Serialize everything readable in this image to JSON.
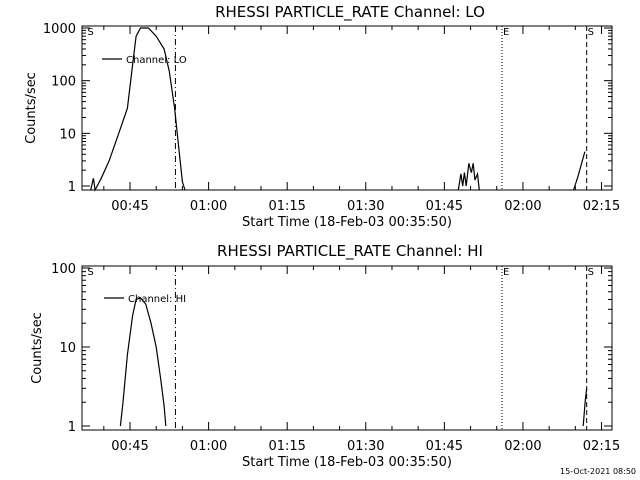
{
  "chart_data": [
    {
      "type": "line",
      "title": "RHESSI PARTICLE_RATE Channel: LO",
      "xlabel": "Start Time (18-Feb-03 00:35:50)",
      "ylabel": "Counts/sec",
      "x_ticks": [
        "00:45",
        "01:00",
        "01:15",
        "01:30",
        "01:45",
        "02:00",
        "02:15"
      ],
      "y_ticks": [
        "1",
        "10",
        "100",
        "1000"
      ],
      "y_scale": "log",
      "xlim": [
        "00:35:50",
        "02:17:00"
      ],
      "ylim": [
        0.8,
        1000
      ],
      "legend": {
        "label": "Channel: LO",
        "placement": "top-left"
      },
      "series": [
        {
          "name": "Channel: LO",
          "points": [
            [
              "00:37:30",
              0.8
            ],
            [
              "00:38:00",
              1.4
            ],
            [
              "00:38:20",
              0.8
            ],
            [
              "00:39:30",
              1.4
            ],
            [
              "00:41:00",
              3
            ],
            [
              "00:43:00",
              11
            ],
            [
              "00:44:30",
              30
            ],
            [
              "00:45:30",
              200
            ],
            [
              "00:46:10",
              700
            ],
            [
              "00:47:00",
              1000
            ],
            [
              "00:48:30",
              1000
            ],
            [
              "00:50:00",
              700
            ],
            [
              "00:51:30",
              400
            ],
            [
              "00:52:30",
              150
            ],
            [
              "00:53:30",
              30
            ],
            [
              "00:54:20",
              5
            ],
            [
              "00:55:00",
              1.2
            ],
            [
              "00:55:30",
              0.8
            ]
          ]
        },
        {
          "name": "Channel: LO",
          "points": [
            [
              "01:47:40",
              0.8
            ],
            [
              "01:48:10",
              1.7
            ],
            [
              "01:48:30",
              1
            ],
            [
              "01:48:50",
              1.8
            ],
            [
              "01:49:10",
              1
            ],
            [
              "01:49:40",
              2.7
            ],
            [
              "01:50:10",
              1.8
            ],
            [
              "01:50:30",
              2.7
            ],
            [
              "01:50:50",
              1.3
            ],
            [
              "01:51:20",
              1.7
            ],
            [
              "01:51:40",
              0.8
            ]
          ]
        },
        {
          "name": "Channel: LO",
          "points": [
            [
              "02:09:40",
              0.8
            ],
            [
              "02:10:30",
              1.5
            ],
            [
              "02:11:20",
              3
            ],
            [
              "02:11:50",
              4.5
            ]
          ]
        }
      ],
      "markers": [
        {
          "label": "S",
          "time": "00:36:40",
          "style": "none"
        },
        {
          "label": "",
          "time": "00:53:40",
          "style": "dash-dot"
        },
        {
          "label": "E",
          "time": "01:56:00",
          "style": "dotted"
        },
        {
          "label": "S",
          "time": "02:12:10",
          "style": "dashed"
        }
      ]
    },
    {
      "type": "line",
      "title": "RHESSI PARTICLE_RATE Channel: HI",
      "xlabel": "Start Time (18-Feb-03 00:35:50)",
      "ylabel": "Counts/sec",
      "x_ticks": [
        "00:45",
        "01:00",
        "01:15",
        "01:30",
        "01:45",
        "02:00",
        "02:15"
      ],
      "y_ticks": [
        "1",
        "10",
        "100"
      ],
      "y_scale": "log",
      "xlim": [
        "00:35:50",
        "02:17:00"
      ],
      "ylim": [
        1,
        100
      ],
      "legend": {
        "label": "Channel: HI",
        "placement": "top-left"
      },
      "series": [
        {
          "name": "Channel: HI",
          "points": [
            [
              "00:43:10",
              1
            ],
            [
              "00:43:40",
              2
            ],
            [
              "00:44:30",
              8
            ],
            [
              "00:45:30",
              25
            ],
            [
              "00:46:10",
              40
            ],
            [
              "00:47:00",
              42
            ],
            [
              "00:48:00",
              35
            ],
            [
              "00:49:00",
              20
            ],
            [
              "00:50:00",
              10
            ],
            [
              "00:50:50",
              4
            ],
            [
              "00:51:30",
              1.8
            ],
            [
              "00:51:50",
              1
            ]
          ]
        },
        {
          "name": "Channel: HI",
          "points": [
            [
              "02:11:30",
              1
            ],
            [
              "02:11:45",
              1.6
            ],
            [
              "02:11:55",
              2.2
            ],
            [
              "02:12:10",
              3
            ]
          ]
        }
      ],
      "markers": [
        {
          "label": "S",
          "time": "00:36:40",
          "style": "none"
        },
        {
          "label": "",
          "time": "00:53:40",
          "style": "dash-dot"
        },
        {
          "label": "E",
          "time": "01:56:00",
          "style": "dotted"
        },
        {
          "label": "S",
          "time": "02:12:10",
          "style": "dashed"
        }
      ]
    }
  ],
  "footer": {
    "timestamp": "15-Oct-2021 08:50"
  }
}
